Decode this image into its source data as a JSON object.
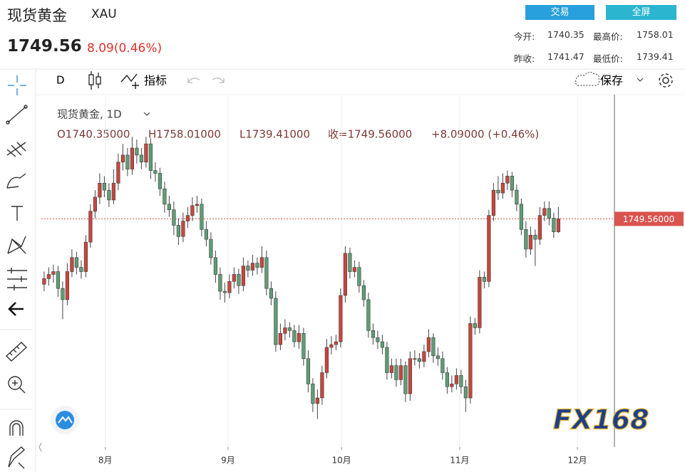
{
  "header": {
    "title": "现货黄金",
    "symbol": "XAU",
    "price": "1749.56",
    "change": "8.09(0.46%)",
    "buttons": [
      "交易",
      "全屏"
    ],
    "stats": [
      {
        "label": "今开:",
        "value": "1740.35"
      },
      {
        "label": "最高价:",
        "value": "1758.01"
      },
      {
        "label": "昨收:",
        "value": "1741.47"
      },
      {
        "label": "最低价:",
        "value": "1739.41"
      }
    ]
  },
  "toolbar": {
    "interval": "D",
    "indicators": "指标",
    "save": "保存"
  },
  "chart_data": {
    "type": "candlestick",
    "legend_title": "现货黄金, 1D",
    "ohlc_labels": [
      "O1740.35000",
      "H1758.01000",
      "L1739.41000",
      "收=1749.56000",
      "+8.09000 (+0.46%)"
    ],
    "watermark": "FX168",
    "up_color": "#c9463d",
    "down_color": "#5f9e76",
    "x": [
      0,
      1,
      2,
      3,
      4,
      5,
      6,
      7,
      8,
      9,
      10,
      11,
      12,
      13,
      14,
      15,
      16,
      17,
      18,
      19,
      20,
      21,
      22,
      23,
      24,
      25,
      26,
      27,
      28,
      29,
      30,
      31,
      32,
      33,
      34,
      35,
      36,
      37,
      38,
      39,
      40,
      41,
      42,
      43,
      44,
      45,
      46,
      47,
      48,
      49,
      50,
      51,
      52,
      53,
      54,
      55,
      56,
      57,
      58,
      59,
      60,
      61,
      62,
      63,
      64,
      65,
      66,
      67,
      68,
      69,
      70,
      71,
      72,
      73,
      74,
      75,
      76,
      77,
      78,
      79,
      80,
      81,
      82,
      83,
      84,
      85,
      86,
      87,
      88,
      89,
      90,
      91,
      92,
      93,
      94,
      95,
      96,
      97,
      98,
      99,
      100,
      101,
      102,
      103,
      104,
      105,
      106,
      107,
      108,
      109,
      110,
      111
    ],
    "open": [
      1703,
      1707,
      1710,
      1712,
      1700,
      1692,
      1712,
      1722,
      1715,
      1712,
      1733,
      1755,
      1765,
      1775,
      1770,
      1763,
      1775,
      1790,
      1795,
      1785,
      1800,
      1795,
      1790,
      1803,
      1784,
      1782,
      1771,
      1760,
      1756,
      1745,
      1737,
      1748,
      1752,
      1759,
      1760,
      1742,
      1735,
      1722,
      1710,
      1698,
      1697,
      1705,
      1710,
      1702,
      1716,
      1713,
      1718,
      1715,
      1722,
      1700,
      1693,
      1660,
      1668,
      1672,
      1670,
      1662,
      1668,
      1650,
      1632,
      1618,
      1622,
      1640,
      1658,
      1660,
      1662,
      1695,
      1725,
      1712,
      1715,
      1702,
      1692,
      1670,
      1665,
      1662,
      1658,
      1640,
      1645,
      1635,
      1645,
      1625,
      1650,
      1650,
      1648,
      1655,
      1665,
      1652,
      1650,
      1640,
      1630,
      1632,
      1638,
      1630,
      1622,
      1675,
      1672,
      1708,
      1705,
      1752,
      1770,
      1768,
      1775,
      1780,
      1770,
      1760,
      1742,
      1728,
      1738,
      1735,
      1752,
      1757,
      1750,
      1740.35
    ],
    "high": [
      1712,
      1715,
      1717,
      1716,
      1705,
      1718,
      1728,
      1726,
      1720,
      1738,
      1760,
      1770,
      1782,
      1780,
      1775,
      1785,
      1796,
      1803,
      1800,
      1808,
      1806,
      1800,
      1808,
      1807,
      1790,
      1786,
      1776,
      1766,
      1762,
      1750,
      1754,
      1758,
      1765,
      1766,
      1764,
      1748,
      1740,
      1727,
      1715,
      1704,
      1710,
      1715,
      1714,
      1722,
      1720,
      1724,
      1722,
      1730,
      1727,
      1705,
      1698,
      1675,
      1678,
      1676,
      1674,
      1674,
      1672,
      1656,
      1636,
      1628,
      1645,
      1664,
      1666,
      1667,
      1700,
      1730,
      1729,
      1720,
      1719,
      1706,
      1697,
      1675,
      1670,
      1667,
      1662,
      1650,
      1650,
      1650,
      1648,
      1655,
      1656,
      1654,
      1660,
      1671,
      1668,
      1658,
      1655,
      1644,
      1638,
      1643,
      1642,
      1635,
      1680,
      1679,
      1713,
      1712,
      1756,
      1775,
      1780,
      1782,
      1784,
      1783,
      1774,
      1764,
      1748,
      1744,
      1742,
      1758,
      1762,
      1762,
      1754,
      1758.01
    ],
    "low": [
      1698,
      1702,
      1704,
      1694,
      1678,
      1688,
      1708,
      1710,
      1707,
      1708,
      1729,
      1750,
      1760,
      1765,
      1758,
      1760,
      1770,
      1784,
      1780,
      1781,
      1789,
      1785,
      1786,
      1778,
      1776,
      1766,
      1754,
      1751,
      1738,
      1731,
      1733,
      1743,
      1748,
      1754,
      1737,
      1730,
      1717,
      1704,
      1692,
      1690,
      1693,
      1700,
      1696,
      1698,
      1708,
      1709,
      1710,
      1711,
      1695,
      1688,
      1655,
      1656,
      1663,
      1665,
      1658,
      1657,
      1645,
      1626,
      1612,
      1607,
      1617,
      1636,
      1653,
      1656,
      1658,
      1690,
      1707,
      1708,
      1697,
      1687,
      1665,
      1660,
      1657,
      1653,
      1635,
      1636,
      1630,
      1631,
      1619,
      1620,
      1645,
      1643,
      1644,
      1651,
      1647,
      1645,
      1635,
      1625,
      1626,
      1628,
      1625,
      1612,
      1618,
      1667,
      1668,
      1700,
      1701,
      1748,
      1763,
      1764,
      1770,
      1765,
      1755,
      1738,
      1722,
      1724,
      1716,
      1731,
      1748,
      1745,
      1736,
      1739.41
    ],
    "close": [
      1707,
      1710,
      1712,
      1700,
      1692,
      1712,
      1722,
      1715,
      1712,
      1733,
      1755,
      1765,
      1775,
      1770,
      1763,
      1775,
      1790,
      1795,
      1785,
      1800,
      1795,
      1790,
      1803,
      1784,
      1782,
      1771,
      1760,
      1756,
      1745,
      1737,
      1748,
      1752,
      1759,
      1760,
      1742,
      1735,
      1722,
      1710,
      1698,
      1697,
      1705,
      1710,
      1702,
      1716,
      1713,
      1718,
      1715,
      1722,
      1700,
      1693,
      1660,
      1668,
      1672,
      1670,
      1662,
      1668,
      1650,
      1632,
      1618,
      1622,
      1640,
      1658,
      1660,
      1662,
      1695,
      1725,
      1712,
      1715,
      1702,
      1692,
      1670,
      1665,
      1662,
      1658,
      1640,
      1645,
      1635,
      1645,
      1625,
      1650,
      1650,
      1648,
      1655,
      1665,
      1652,
      1650,
      1640,
      1630,
      1632,
      1638,
      1630,
      1622,
      1675,
      1672,
      1708,
      1705,
      1752,
      1770,
      1768,
      1775,
      1780,
      1770,
      1760,
      1742,
      1728,
      1738,
      1735,
      1752,
      1757,
      1750,
      1740.35,
      1749.56
    ],
    "xlim": [
      -0.6,
      123.1
    ],
    "ylim": [
      1587,
      1837
    ],
    "xticks": [
      {
        "value": 13.2,
        "label": "8月"
      },
      {
        "value": 39.7,
        "label": "9月"
      },
      {
        "value": 64.2,
        "label": "10月"
      },
      {
        "value": 89.7,
        "label": "11月"
      },
      {
        "value": 115.1,
        "label": "12月"
      }
    ],
    "grid": true,
    "price_line": {
      "value": 1749.56,
      "label": "1749.56000"
    }
  }
}
